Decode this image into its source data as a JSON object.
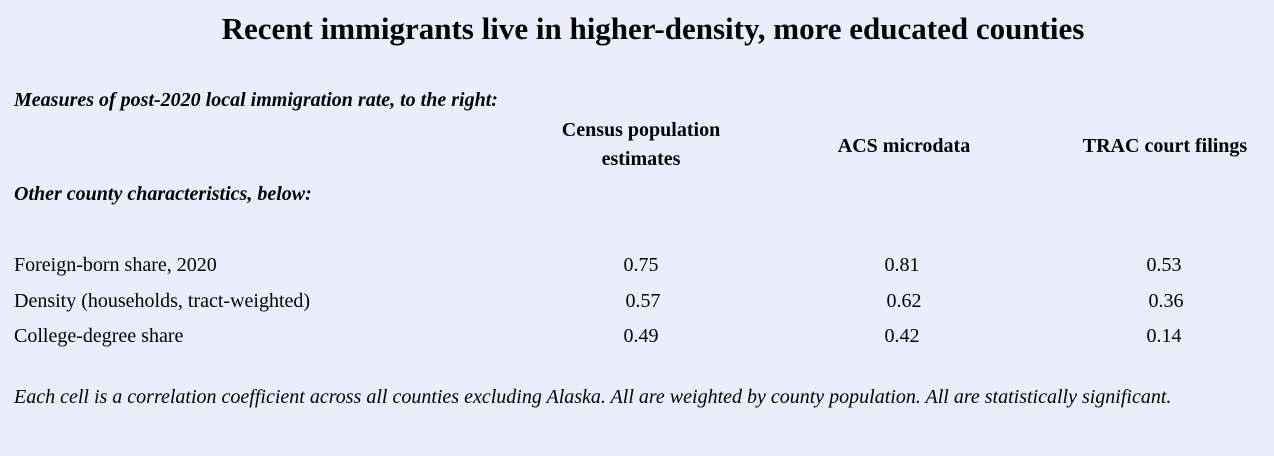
{
  "chart_data": {
    "type": "table",
    "title": "Recent immigrants live in higher-density, more educated counties",
    "header_top": "Measures of post-2020 local immigration rate, to the right:",
    "header_side": "Other county characteristics, below:",
    "columns": [
      "Census population estimates",
      "ACS microdata",
      "TRAC court filings"
    ],
    "rows": [
      {
        "label": "Foreign-born share, 2020",
        "values": [
          0.75,
          0.81,
          0.53
        ]
      },
      {
        "label": "Density (households, tract-weighted)",
        "values": [
          0.57,
          0.62,
          0.36
        ]
      },
      {
        "label": "College-degree share",
        "values": [
          0.49,
          0.42,
          0.14
        ]
      }
    ],
    "note": "Each cell is a correlation coefficient across all counties excluding Alaska. All are weighted by county population. All are statistically significant."
  }
}
